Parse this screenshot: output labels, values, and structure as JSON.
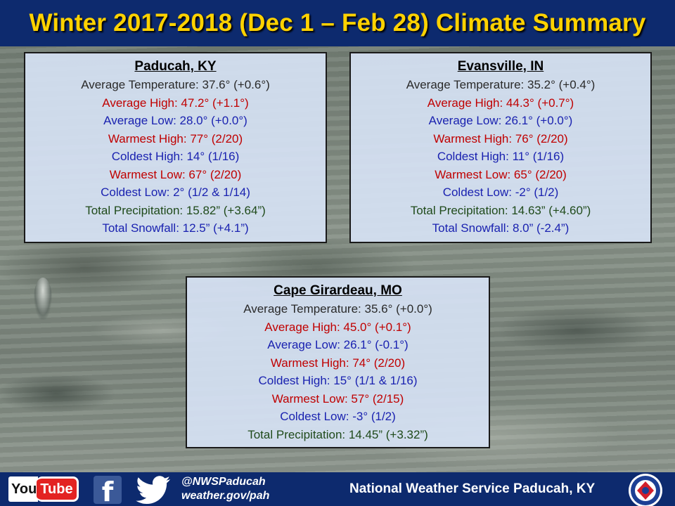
{
  "header": {
    "title": "Winter 2017-2018 (Dec 1 – Feb 28) Climate Summary"
  },
  "locations": [
    {
      "name": "Paducah, KY",
      "stats": [
        {
          "text": "Average Temperature: 37.6° (+0.6°)",
          "color": "#2a2a2a"
        },
        {
          "text": "Average High: 47.2° (+1.1°)",
          "color": "#c00000"
        },
        {
          "text": "Average Low: 28.0° (+0.0°)",
          "color": "#1a22b0"
        },
        {
          "text": "Warmest High: 77° (2/20)",
          "color": "#c00000"
        },
        {
          "text": "Coldest High: 14° (1/16)",
          "color": "#1a22b0"
        },
        {
          "text": "Warmest Low: 67° (2/20)",
          "color": "#c00000"
        },
        {
          "text": "Coldest Low: 2° (1/2 & 1/14)",
          "color": "#1a22b0"
        },
        {
          "text": "Total Precipitation: 15.82” (+3.64”)",
          "color": "#1f4a1a"
        },
        {
          "text": "Total Snowfall: 12.5” (+4.1”)",
          "color": "#1a22b0"
        }
      ]
    },
    {
      "name": "Evansville, IN",
      "stats": [
        {
          "text": "Average Temperature: 35.2° (+0.4°)",
          "color": "#2a2a2a"
        },
        {
          "text": "Average High: 44.3° (+0.7°)",
          "color": "#c00000"
        },
        {
          "text": "Average Low: 26.1° (+0.0°)",
          "color": "#1a22b0"
        },
        {
          "text": "Warmest High: 76° (2/20)",
          "color": "#c00000"
        },
        {
          "text": "Coldest High: 11° (1/16)",
          "color": "#1a22b0"
        },
        {
          "text": "Warmest Low: 65° (2/20)",
          "color": "#c00000"
        },
        {
          "text": "Coldest Low: -2° (1/2)",
          "color": "#1a22b0"
        },
        {
          "text": "Total Precipitation: 14.63” (+4.60”)",
          "color": "#1f4a1a"
        },
        {
          "text": "Total Snowfall: 8.0” (-2.4”)",
          "color": "#1a22b0"
        }
      ]
    },
    {
      "name": "Cape Girardeau, MO",
      "stats": [
        {
          "text": "Average Temperature: 35.6° (+0.0°)",
          "color": "#2a2a2a"
        },
        {
          "text": "Average High: 45.0° (+0.1°)",
          "color": "#c00000"
        },
        {
          "text": "Average Low: 26.1° (-0.1°)",
          "color": "#1a22b0"
        },
        {
          "text": "Warmest High: 74° (2/20)",
          "color": "#c00000"
        },
        {
          "text": "Coldest High: 15° (1/1 & 1/16)",
          "color": "#1a22b0"
        },
        {
          "text": "Warmest Low: 57° (2/15)",
          "color": "#c00000"
        },
        {
          "text": "Coldest Low: -3° (1/2)",
          "color": "#1a22b0"
        },
        {
          "text": "Total Precipitation: 14.45” (+3.32”)",
          "color": "#1f4a1a"
        }
      ]
    }
  ],
  "footer": {
    "youtube_you": "You",
    "youtube_tube": "Tube",
    "facebook_glyph": "f",
    "handle": "@NWSPaducah",
    "website": "weather.gov/pah",
    "office": "National Weather Service Paducah, KY",
    "icons": [
      "youtube-icon",
      "facebook-icon",
      "twitter-icon",
      "nws-logo"
    ]
  },
  "colors": {
    "header_bg": "#0d2a6e",
    "title": "#ffd200",
    "box_bg": "#d6e2f4"
  }
}
